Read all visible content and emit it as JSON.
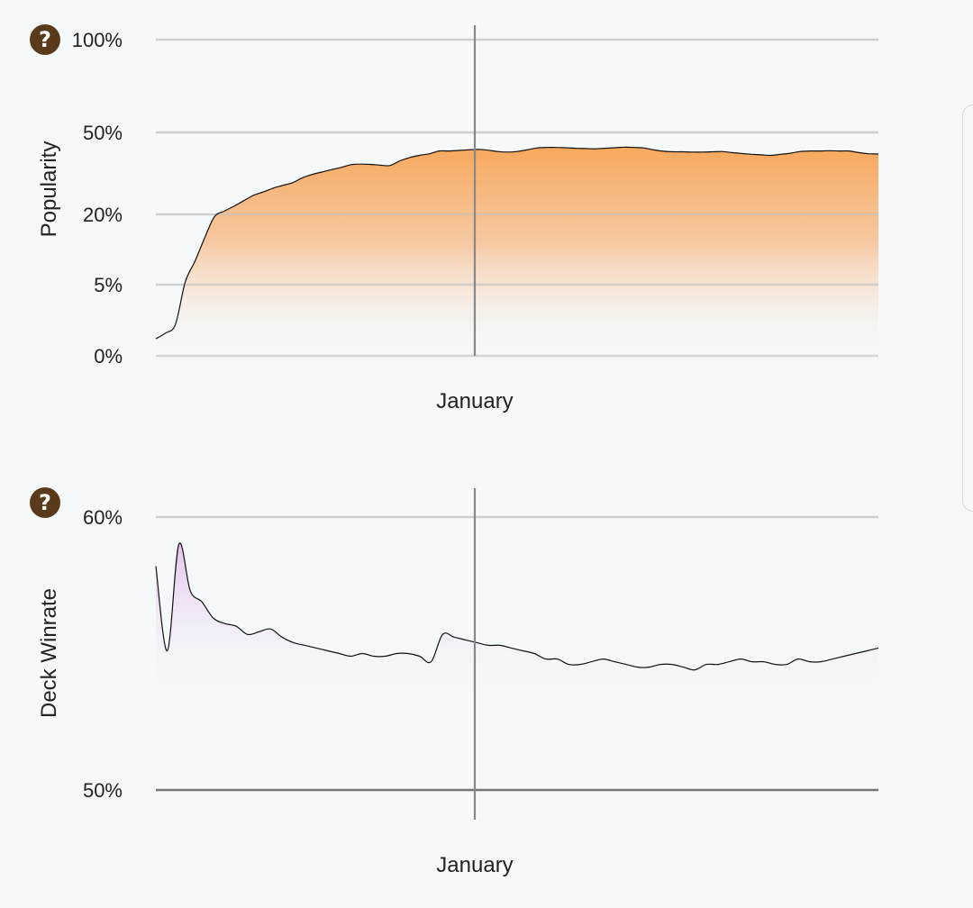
{
  "help_icon_glyph": "?",
  "chart_data": [
    {
      "type": "area",
      "title": "",
      "xlabel": "January",
      "ylabel": "Popularity",
      "y_scale": "nonlinear",
      "y_ticks": [
        0,
        5,
        20,
        50,
        100
      ],
      "y_tick_labels": [
        "0%",
        "5%",
        "20%",
        "50%",
        "100%"
      ],
      "ylim": [
        0,
        100
      ],
      "x_tick_labels": [
        "January"
      ],
      "grid": true,
      "fill_color": "#f7a85c",
      "line_color": "#111111",
      "values": [
        1.2,
        1.6,
        2.2,
        5.5,
        10,
        15,
        19.5,
        21.2,
        23,
        25,
        27,
        28.2,
        29.6,
        30.6,
        31.6,
        33.4,
        34.6,
        35.5,
        36.4,
        37.2,
        38.2,
        38.4,
        38.3,
        38.0,
        37.9,
        39.6,
        40.8,
        41.6,
        42.2,
        43.2,
        43.2,
        43.4,
        43.6,
        43.8,
        43.5,
        43.0,
        42.8,
        43.0,
        43.6,
        44.3,
        44.5,
        44.5,
        44.4,
        44.2,
        44.1,
        44.0,
        44.2,
        44.4,
        44.6,
        44.5,
        44.3,
        43.6,
        43.1,
        42.9,
        42.9,
        42.8,
        42.8,
        42.9,
        43.0,
        42.6,
        42.3,
        42.0,
        41.8,
        41.6,
        42.0,
        42.4,
        43.0,
        43.2,
        43.2,
        43.3,
        43.2,
        43.2,
        42.6,
        42.2,
        42.1
      ]
    },
    {
      "type": "area",
      "title": "",
      "xlabel": "January",
      "ylabel": "Deck Winrate",
      "y_ticks": [
        50,
        60
      ],
      "y_tick_labels": [
        "50%",
        "60%"
      ],
      "ylim": [
        50,
        61
      ],
      "x_tick_labels": [
        "January"
      ],
      "grid": true,
      "fill_color": "#e6c3ec",
      "line_color": "#111111",
      "values": [
        58.2,
        55.1,
        59.0,
        57.3,
        56.9,
        56.3,
        56.1,
        56.0,
        55.7,
        55.8,
        55.9,
        55.6,
        55.4,
        55.3,
        55.2,
        55.1,
        55.0,
        54.9,
        55.0,
        54.9,
        54.9,
        55.0,
        55.0,
        54.9,
        54.7,
        55.7,
        55.6,
        55.5,
        55.4,
        55.3,
        55.3,
        55.2,
        55.1,
        55.0,
        54.8,
        54.8,
        54.6,
        54.6,
        54.7,
        54.8,
        54.7,
        54.6,
        54.5,
        54.5,
        54.6,
        54.6,
        54.5,
        54.4,
        54.6,
        54.6,
        54.7,
        54.8,
        54.7,
        54.7,
        54.6,
        54.6,
        54.8,
        54.7,
        54.7,
        54.8,
        54.9,
        55.0,
        55.1,
        55.2
      ]
    }
  ]
}
